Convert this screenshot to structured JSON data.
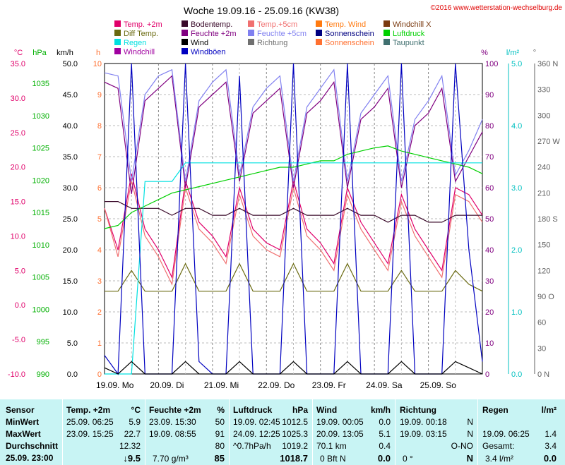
{
  "header": {
    "title": "Woche 19.09.16 - 25.09.16 (KW38)",
    "copyright": "©2016 www.wetterstation-wechselburg.de"
  },
  "legend": [
    {
      "label": "Temp. +2m",
      "color": "#e0006a"
    },
    {
      "label": "Bodentemp.",
      "color": "#3a0a2a"
    },
    {
      "label": "Temp.+5cm",
      "color": "#f07070"
    },
    {
      "label": "Temp. Wind",
      "color": "#ff7a10"
    },
    {
      "label": "Windchill X",
      "color": "#7a3a10"
    },
    {
      "label": "Diff Temp.",
      "color": "#6a6a10"
    },
    {
      "label": "Feuchte +2m",
      "color": "#800080"
    },
    {
      "label": "Feuchte +5cm",
      "color": "#8080f0"
    },
    {
      "label": "Sonnenschein",
      "color": "#000080"
    },
    {
      "label": "Luftdruck",
      "color": "#00d000"
    },
    {
      "label": "Regen",
      "color": "#00e0e0"
    },
    {
      "label": "Wind",
      "color": "#000000"
    },
    {
      "label": "Richtung",
      "color": "#707070"
    },
    {
      "label": "Sonnenschein",
      "color": "#ff7030"
    },
    {
      "label": "Taupunkt",
      "color": "#407070"
    },
    {
      "label": "Windchill",
      "color": "#a000a0"
    },
    {
      "label": "Windböen",
      "color": "#0000c0"
    }
  ],
  "axes": {
    "temp": {
      "unit": "°C",
      "color": "#e0006a",
      "ticks": [
        "35.0",
        "30.0",
        "25.0",
        "20.0",
        "15.0",
        "10.0",
        "5.0",
        "0.0",
        "-5.0",
        "-10.0"
      ]
    },
    "pressure": {
      "unit": "hPa",
      "color": "#00b000",
      "ticks": [
        "1035",
        "1030",
        "1025",
        "1020",
        "1015",
        "1010",
        "1005",
        "1000",
        "995",
        "990"
      ]
    },
    "wind": {
      "unit": "km/h",
      "color": "#000000",
      "ticks": [
        "50.0",
        "45.0",
        "40.0",
        "35.0",
        "30.0",
        "25.0",
        "20.0",
        "15.0",
        "10.0",
        "5.0",
        "0.0"
      ]
    },
    "hours": {
      "unit": "h",
      "color": "#ff7030",
      "ticks": [
        "10",
        "9",
        "8",
        "7",
        "6",
        "5",
        "4",
        "3",
        "2",
        "1",
        "0"
      ]
    },
    "humidity": {
      "unit": "%",
      "color": "#800080",
      "ticks": [
        "100",
        "90",
        "80",
        "70",
        "60",
        "50",
        "40",
        "30",
        "20",
        "10",
        "0"
      ]
    },
    "rain": {
      "unit": "l/m²",
      "color": "#00c0c0",
      "ticks": [
        "5.0",
        "4.0",
        "3.0",
        "2.0",
        "1.0",
        "0.0"
      ]
    },
    "direction": {
      "unit": "°",
      "color": "#606060",
      "ticks": [
        "360 N",
        "330",
        "300",
        "270 W",
        "240",
        "210",
        "180 S",
        "150",
        "120",
        "90 O",
        "60",
        "30",
        "0 N"
      ]
    },
    "days": [
      "19.09. Mo",
      "20.09. Di",
      "21.09. Mi",
      "22.09. Do",
      "23.09. Fr",
      "24.09. Sa",
      "25.09. So"
    ]
  },
  "chart_data": {
    "type": "line",
    "title": "Woche 19.09.16 - 25.09.16 (KW38)",
    "x": [
      0,
      6,
      12,
      18,
      24,
      30,
      36,
      42,
      48,
      54,
      60,
      66,
      72,
      78,
      84,
      90,
      96,
      102,
      108,
      114,
      120,
      126,
      132,
      138,
      144,
      150,
      156,
      162,
      168
    ],
    "series": [
      {
        "name": "Temp. +2m",
        "values": [
          14,
          8,
          19,
          11,
          8,
          4,
          18,
          12,
          10,
          7,
          17,
          11,
          9,
          8,
          18,
          11,
          9,
          6,
          17,
          12,
          9,
          6,
          16,
          11,
          8,
          5,
          17,
          16,
          13
        ]
      },
      {
        "name": "Temp.+5cm",
        "values": [
          14,
          7,
          18,
          10,
          7,
          3,
          17,
          11,
          9,
          6,
          16,
          10,
          8,
          7,
          17,
          10,
          8,
          5,
          16,
          11,
          8,
          5,
          15,
          10,
          7,
          4,
          16,
          15,
          12
        ]
      },
      {
        "name": "Feuchte +2m",
        "values": [
          94,
          92,
          58,
          88,
          92,
          96,
          60,
          86,
          90,
          94,
          62,
          84,
          88,
          92,
          60,
          84,
          88,
          94,
          60,
          82,
          86,
          92,
          60,
          80,
          84,
          92,
          62,
          70,
          78
        ]
      },
      {
        "name": "Feuchte +5cm",
        "values": [
          97,
          96,
          62,
          90,
          96,
          98,
          62,
          88,
          94,
          98,
          64,
          86,
          92,
          96,
          62,
          86,
          92,
          98,
          62,
          84,
          90,
          96,
          62,
          82,
          88,
          96,
          64,
          72,
          82
        ]
      },
      {
        "name": "Bodentemp.",
        "values": [
          15,
          15,
          14,
          14,
          14,
          13,
          14,
          14,
          13,
          13,
          14,
          13,
          13,
          13,
          14,
          13,
          13,
          13,
          14,
          13,
          13,
          12,
          13,
          13,
          12,
          12,
          13,
          13,
          13
        ]
      },
      {
        "name": "Diff Temp.",
        "values": [
          2,
          2,
          5,
          2,
          2,
          2,
          6,
          2,
          2,
          2,
          6,
          2,
          2,
          2,
          6,
          2,
          2,
          2,
          6,
          2,
          2,
          2,
          5,
          2,
          2,
          2,
          5,
          3,
          2
        ]
      },
      {
        "name": "Luftdruck",
        "values": [
          1012.5,
          1013,
          1015,
          1016,
          1017,
          1018,
          1018.5,
          1019,
          1019.5,
          1020,
          1020.5,
          1021,
          1021.5,
          1022,
          1022,
          1022.5,
          1023,
          1023,
          1024,
          1024.5,
          1025,
          1025.3,
          1024.5,
          1024,
          1023.5,
          1023,
          1022.5,
          1022,
          1021
        ]
      },
      {
        "name": "Regen",
        "values": [
          0,
          0,
          0,
          3.1,
          3.1,
          3.1,
          3.4,
          3.4,
          3.4,
          3.4,
          3.4,
          3.4,
          3.4,
          3.4,
          3.4,
          3.4,
          3.4,
          3.4,
          3.4,
          3.4,
          3.4,
          3.4,
          3.4,
          3.4,
          3.4,
          3.4,
          3.4,
          3.4,
          3.4
        ]
      },
      {
        "name": "Windböen",
        "values": [
          3,
          0,
          50,
          0,
          0,
          0,
          50,
          2,
          0,
          0,
          48,
          0,
          0,
          0,
          50,
          0,
          0,
          0,
          50,
          0,
          0,
          0,
          50,
          0,
          0,
          0,
          50,
          20,
          2
        ]
      },
      {
        "name": "Wind",
        "values": [
          1,
          0,
          2,
          0,
          0,
          0,
          2,
          0,
          0,
          0,
          2,
          0,
          0,
          0,
          2,
          0,
          0,
          0,
          2,
          0,
          0,
          0,
          2,
          0,
          0,
          0,
          2,
          1,
          0
        ]
      }
    ],
    "xlabel": "",
    "ylabel": "°C"
  },
  "stats": {
    "col1": {
      "header": "Sensor",
      "min": "MinWert",
      "max": "MaxWert",
      "avg": "Durchschnitt",
      "now": "25.09. 23:00"
    },
    "col2": {
      "header": "Temp. +2m",
      "unit": "°C",
      "min_t": "25.09.  06:25",
      "min_v": "5.9",
      "max_t": "23.09.  15:25",
      "max_v": "22.7",
      "avg_v": "12.32",
      "now_v": "↓9.5"
    },
    "col3": {
      "header": "Feuchte +2m",
      "unit": "%",
      "min_t": "23.09.  15:30",
      "min_v": "50",
      "max_t": "19.09.  08:55",
      "max_v": "91",
      "avg_v": "80",
      "now_t": "7.70 g/m³",
      "now_v": "85"
    },
    "col4": {
      "header": "Luftdruck",
      "unit": "hPa",
      "min_t": "19.09.  02:45",
      "min_v": "1012.5",
      "max_t": "24.09.  12:25",
      "max_v": "1025.3",
      "avg_t": "^0.7hPa/h",
      "avg_v": "1019.2",
      "now_v": "1018.7"
    },
    "col5": {
      "header": "Wind",
      "unit": "km/h",
      "min_t": "19.09.  00:05",
      "min_v": "0.0",
      "max_t": "20.09.  13:05",
      "max_v": "5.1",
      "avg_t": "70.1 km",
      "avg_v": "0.4",
      "now_t": "0 Bft N",
      "now_v": "0.0"
    },
    "col6": {
      "header": "Richtung",
      "min_t": "19.09.  00:18",
      "min_v": "N",
      "max_t": "19.09.  03:15",
      "max_v": "N",
      "avg_v": "O-NO",
      "now_t": "0 °",
      "now_v": "N"
    },
    "col7": {
      "header": "Regen",
      "unit": "l/m²",
      "max_t": "19.09.  06:25",
      "max_v": "1.4",
      "avg_t": "Gesamt:",
      "avg_v": "3.4",
      "now_t": "3.4 l/m²",
      "now_v": "0.0"
    }
  }
}
